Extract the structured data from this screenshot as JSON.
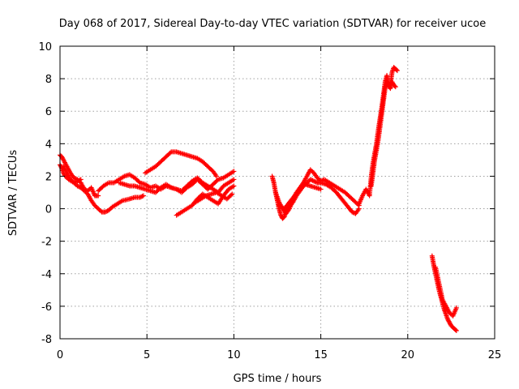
{
  "chart_data": {
    "type": "scatter",
    "title": "Day 068 of 2017, Sidereal Day-to-day VTEC variation (SDTVAR) for receiver ucoe",
    "xlabel": "GPS time / hours",
    "ylabel": "SDTVAR / TECUs",
    "xlim": [
      0,
      25
    ],
    "ylim": [
      -8,
      10
    ],
    "xticks": [
      0,
      5,
      10,
      15,
      20,
      25
    ],
    "yticks": [
      -8,
      -6,
      -4,
      -2,
      0,
      2,
      4,
      6,
      8,
      10
    ],
    "grid": true,
    "marker": "plus",
    "color": "#ff0000",
    "series": [
      {
        "segments": [
          {
            "x": [
              0.0,
              0.1,
              0.2,
              0.3,
              0.5,
              0.8,
              1.0,
              1.2,
              1.4,
              1.6,
              1.8,
              2.0,
              2.2,
              2.4,
              2.6,
              2.8,
              3.0,
              3.3,
              3.6,
              4.0,
              4.3,
              4.6,
              4.8
            ],
            "y": [
              2.7,
              2.5,
              2.2,
              2.0,
              1.8,
              1.6,
              1.4,
              1.3,
              1.1,
              0.9,
              0.5,
              0.2,
              0.0,
              -0.2,
              -0.2,
              -0.1,
              0.1,
              0.3,
              0.5,
              0.6,
              0.7,
              0.7,
              0.8
            ]
          },
          {
            "x": [
              0.0,
              0.1,
              0.2,
              0.4,
              0.6,
              0.8,
              1.0,
              1.2,
              1.4,
              1.6,
              1.8,
              2.0,
              2.2
            ],
            "y": [
              3.3,
              3.2,
              3.0,
              2.6,
              2.2,
              1.9,
              1.8,
              1.6,
              1.2,
              1.1,
              1.3,
              0.8,
              0.8
            ]
          },
          {
            "x": [
              0.2,
              0.4,
              0.6,
              0.8,
              1.0,
              1.2
            ],
            "y": [
              2.6,
              2.2,
              1.8,
              1.6,
              1.7,
              1.8
            ]
          },
          {
            "x": [
              2.2,
              2.5,
              2.8,
              3.1,
              3.4,
              3.7,
              4.0,
              4.3,
              4.6,
              4.9,
              5.2,
              5.5,
              5.8,
              6.1,
              6.4,
              6.7,
              7.0,
              7.3,
              7.6,
              7.9,
              8.2,
              8.5,
              8.8,
              9.1,
              9.4,
              9.7,
              10.0
            ],
            "y": [
              1.1,
              1.4,
              1.6,
              1.6,
              1.8,
              2.0,
              2.1,
              1.9,
              1.6,
              1.5,
              1.3,
              1.4,
              1.2,
              1.4,
              1.3,
              1.2,
              1.0,
              1.3,
              1.5,
              1.8,
              1.5,
              1.2,
              1.5,
              1.8,
              1.9,
              2.1,
              2.3
            ]
          },
          {
            "x": [
              3.4,
              3.7,
              4.0,
              4.3,
              4.6,
              4.9,
              5.2,
              5.5,
              5.8,
              6.1,
              6.4,
              6.7,
              7.0,
              7.3,
              7.6,
              7.9,
              8.2,
              8.5,
              8.8,
              9.1,
              9.4,
              9.7,
              10.0
            ],
            "y": [
              1.6,
              1.5,
              1.4,
              1.4,
              1.3,
              1.2,
              1.1,
              1.0,
              1.3,
              1.5,
              1.3,
              1.2,
              1.1,
              1.4,
              1.7,
              1.9,
              1.6,
              1.4,
              1.2,
              1.0,
              1.4,
              1.6,
              1.8
            ]
          },
          {
            "x": [
              4.9,
              5.2,
              5.5,
              5.8,
              6.1,
              6.4,
              6.7,
              7.0,
              7.3,
              7.6,
              7.9,
              8.2,
              8.5,
              8.8,
              9.0
            ],
            "y": [
              2.2,
              2.4,
              2.6,
              2.9,
              3.2,
              3.5,
              3.5,
              3.4,
              3.3,
              3.2,
              3.1,
              2.9,
              2.6,
              2.3,
              2.0
            ]
          },
          {
            "x": [
              6.7,
              7.0,
              7.3,
              7.6,
              7.9,
              8.2,
              8.5,
              8.8,
              9.1,
              9.4,
              9.7,
              10.0
            ],
            "y": [
              -0.4,
              -0.2,
              0.0,
              0.2,
              0.6,
              0.9,
              0.7,
              0.5,
              0.3,
              0.8,
              1.2,
              1.4
            ]
          },
          {
            "x": [
              7.8,
              8.1,
              8.4,
              8.7,
              9.0,
              9.3,
              9.6,
              9.9
            ],
            "y": [
              0.4,
              0.6,
              0.8,
              0.9,
              1.0,
              0.8,
              0.6,
              0.9
            ]
          },
          {
            "x": [
              12.2,
              12.3,
              12.4,
              12.5,
              12.6,
              12.7,
              12.8,
              12.9,
              13.0,
              13.2,
              13.4,
              13.6,
              13.8,
              14.0,
              14.2,
              14.4,
              14.6,
              14.8,
              15.0,
              15.3,
              15.6,
              15.9,
              16.2,
              16.5,
              16.8,
              17.0,
              17.2
            ],
            "y": [
              2.0,
              1.6,
              1.0,
              0.5,
              0.0,
              -0.4,
              -0.6,
              -0.5,
              -0.2,
              0.1,
              0.4,
              0.8,
              1.1,
              1.4,
              1.6,
              1.8,
              1.7,
              1.6,
              1.6,
              1.5,
              1.3,
              1.0,
              0.6,
              0.2,
              -0.2,
              -0.3,
              0.0
            ]
          },
          {
            "x": [
              12.4,
              12.6,
              12.8,
              13.0,
              13.2,
              13.4,
              13.6,
              13.8,
              14.0,
              14.2,
              14.4,
              14.6,
              14.8,
              15.0,
              15.2,
              15.5,
              15.8,
              16.1,
              16.4,
              16.7,
              17.0,
              17.2
            ],
            "y": [
              1.0,
              0.4,
              0.0,
              -0.3,
              0.0,
              0.6,
              1.0,
              1.3,
              1.6,
              2.0,
              2.4,
              2.2,
              1.9,
              1.7,
              1.8,
              1.6,
              1.4,
              1.2,
              1.0,
              0.7,
              0.4,
              0.2
            ]
          },
          {
            "x": [
              12.6,
              12.9,
              13.2,
              13.5,
              13.8,
              14.1,
              14.4,
              14.7,
              15.0
            ],
            "y": [
              0.2,
              0.0,
              0.4,
              0.8,
              1.2,
              1.5,
              1.4,
              1.3,
              1.2
            ]
          },
          {
            "x": [
              17.2,
              17.4,
              17.6,
              17.8,
              17.9,
              18.0,
              18.1,
              18.2,
              18.3,
              18.4,
              18.5,
              18.6,
              18.7,
              18.8,
              18.9,
              19.0,
              19.1,
              19.2,
              19.3,
              19.4
            ],
            "y": [
              0.3,
              0.8,
              1.2,
              0.8,
              2.0,
              2.8,
              3.4,
              4.0,
              4.8,
              5.5,
              6.2,
              7.0,
              7.8,
              8.2,
              7.5,
              7.6,
              8.4,
              8.7,
              8.6,
              8.5
            ]
          },
          {
            "x": [
              17.9,
              18.0,
              18.1,
              18.2,
              18.3,
              18.4,
              18.5,
              18.6,
              18.7,
              18.8,
              18.9,
              19.0,
              19.1,
              19.2,
              19.3
            ],
            "y": [
              1.4,
              2.2,
              3.0,
              3.6,
              4.2,
              5.0,
              5.8,
              6.6,
              7.4,
              7.8,
              7.6,
              7.4,
              7.8,
              7.6,
              7.5
            ]
          },
          {
            "x": [
              21.4,
              21.5,
              21.6,
              21.7,
              21.8,
              21.9,
              22.0,
              22.1,
              22.2,
              22.3,
              22.4,
              22.5,
              22.6,
              22.7,
              22.8
            ],
            "y": [
              -2.9,
              -3.5,
              -4.0,
              -4.5,
              -5.0,
              -5.4,
              -5.8,
              -6.2,
              -6.5,
              -6.8,
              -7.0,
              -7.2,
              -7.3,
              -7.4,
              -7.5
            ]
          },
          {
            "x": [
              21.6,
              21.8,
              22.0,
              22.2,
              22.4,
              22.6,
              22.8
            ],
            "y": [
              -3.6,
              -4.6,
              -5.6,
              -6.0,
              -6.4,
              -6.6,
              -6.1
            ]
          }
        ]
      }
    ]
  }
}
